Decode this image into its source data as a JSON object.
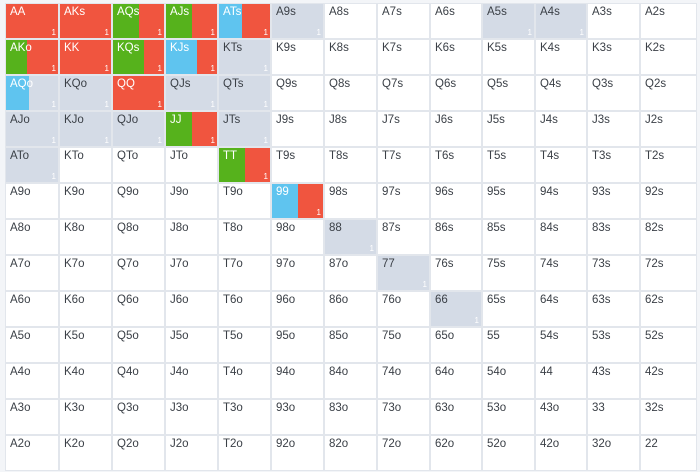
{
  "colors": {
    "red": "#f0553f",
    "green": "#56b21c",
    "blue": "#5fc4ef",
    "grey": "#d4dbe6",
    "white": "#ffffff"
  },
  "cells": [
    [
      "AA",
      "AKs",
      "AQs",
      "AJs",
      "ATs",
      "A9s",
      "A8s",
      "A7s",
      "A6s",
      "A5s",
      "A4s",
      "A3s",
      "A2s"
    ],
    [
      "AKo",
      "KK",
      "KQs",
      "KJs",
      "KTs",
      "K9s",
      "K8s",
      "K7s",
      "K6s",
      "K5s",
      "K4s",
      "K3s",
      "K2s"
    ],
    [
      "AQo",
      "KQo",
      "QQ",
      "QJs",
      "QTs",
      "Q9s",
      "Q8s",
      "Q7s",
      "Q6s",
      "Q5s",
      "Q4s",
      "Q3s",
      "Q2s"
    ],
    [
      "AJo",
      "KJo",
      "QJo",
      "JJ",
      "JTs",
      "J9s",
      "J8s",
      "J7s",
      "J6s",
      "J5s",
      "J4s",
      "J3s",
      "J2s"
    ],
    [
      "ATo",
      "KTo",
      "QTo",
      "JTo",
      "TT",
      "T9s",
      "T8s",
      "T7s",
      "T6s",
      "T5s",
      "T4s",
      "T3s",
      "T2s"
    ],
    [
      "A9o",
      "K9o",
      "Q9o",
      "J9o",
      "T9o",
      "99",
      "98s",
      "97s",
      "96s",
      "95s",
      "94s",
      "93s",
      "92s"
    ],
    [
      "A8o",
      "K8o",
      "Q8o",
      "J8o",
      "T8o",
      "98o",
      "88",
      "87s",
      "86s",
      "85s",
      "84s",
      "83s",
      "82s"
    ],
    [
      "A7o",
      "K7o",
      "Q7o",
      "J7o",
      "T7o",
      "97o",
      "87o",
      "77",
      "76s",
      "75s",
      "74s",
      "73s",
      "72s"
    ],
    [
      "A6o",
      "K6o",
      "Q6o",
      "J6o",
      "T6o",
      "96o",
      "86o",
      "76o",
      "66",
      "65s",
      "64s",
      "63s",
      "62s"
    ],
    [
      "A5o",
      "K5o",
      "Q5o",
      "J5o",
      "T5o",
      "95o",
      "85o",
      "75o",
      "65o",
      "55",
      "54s",
      "53s",
      "52s"
    ],
    [
      "A4o",
      "K4o",
      "Q4o",
      "J4o",
      "T4o",
      "94o",
      "84o",
      "74o",
      "64o",
      "54o",
      "44",
      "43s",
      "42s"
    ],
    [
      "A3o",
      "K3o",
      "Q3o",
      "J3o",
      "T3o",
      "93o",
      "83o",
      "73o",
      "63o",
      "53o",
      "43o",
      "33",
      "32s"
    ],
    [
      "A2o",
      "K2o",
      "Q2o",
      "J2o",
      "T2o",
      "92o",
      "82o",
      "72o",
      "62o",
      "52o",
      "42o",
      "32o",
      "22"
    ]
  ],
  "styles": {
    "0,0": {
      "segs": [
        [
          "red",
          1
        ]
      ],
      "count": "1"
    },
    "0,1": {
      "segs": [
        [
          "red",
          1
        ]
      ],
      "count": "1"
    },
    "0,2": {
      "segs": [
        [
          "green",
          0.5
        ],
        [
          "red",
          0.5
        ]
      ],
      "count": "1"
    },
    "0,3": {
      "segs": [
        [
          "green",
          0.5
        ],
        [
          "red",
          0.5
        ]
      ],
      "count": "1"
    },
    "0,4": {
      "segs": [
        [
          "blue",
          0.45
        ],
        [
          "red",
          0.55
        ]
      ],
      "count": "1"
    },
    "0,5": {
      "segs": [
        [
          "grey",
          1
        ]
      ],
      "count": "1"
    },
    "0,9": {
      "segs": [
        [
          "grey",
          1
        ]
      ],
      "count": "1"
    },
    "0,10": {
      "segs": [
        [
          "grey",
          1
        ]
      ],
      "count": "1"
    },
    "1,0": {
      "segs": [
        [
          "green",
          0.4
        ],
        [
          "red",
          0.6
        ]
      ],
      "count": "1"
    },
    "1,1": {
      "segs": [
        [
          "red",
          1
        ]
      ],
      "count": "1"
    },
    "1,2": {
      "segs": [
        [
          "green",
          0.6
        ],
        [
          "red",
          0.4
        ]
      ],
      "count": "1"
    },
    "1,3": {
      "segs": [
        [
          "blue",
          0.6
        ],
        [
          "red",
          0.4
        ]
      ],
      "count": "1"
    },
    "1,4": {
      "segs": [
        [
          "grey",
          1
        ]
      ],
      "count": "1"
    },
    "2,0": {
      "segs": [
        [
          "blue",
          0.45
        ],
        [
          "grey",
          0.55
        ]
      ],
      "count": "1"
    },
    "2,1": {
      "segs": [
        [
          "grey",
          1
        ]
      ],
      "count": "1"
    },
    "2,2": {
      "segs": [
        [
          "red",
          1
        ]
      ],
      "count": "1"
    },
    "2,3": {
      "segs": [
        [
          "grey",
          1
        ]
      ],
      "count": "1"
    },
    "2,4": {
      "segs": [
        [
          "grey",
          1
        ]
      ],
      "count": "1"
    },
    "3,0": {
      "segs": [
        [
          "grey",
          1
        ]
      ],
      "count": "1"
    },
    "3,1": {
      "segs": [
        [
          "grey",
          1
        ]
      ],
      "count": "1"
    },
    "3,2": {
      "segs": [
        [
          "grey",
          1
        ]
      ],
      "count": "1"
    },
    "3,3": {
      "segs": [
        [
          "green",
          0.5
        ],
        [
          "red",
          0.5
        ]
      ],
      "count": "1"
    },
    "3,4": {
      "segs": [
        [
          "grey",
          1
        ]
      ],
      "count": "1"
    },
    "4,0": {
      "segs": [
        [
          "grey",
          1
        ]
      ],
      "count": "1"
    },
    "4,4": {
      "segs": [
        [
          "green",
          0.5
        ],
        [
          "red",
          0.5
        ]
      ],
      "count": "1"
    },
    "5,5": {
      "segs": [
        [
          "blue",
          0.5
        ],
        [
          "red",
          0.5
        ]
      ],
      "count": "1"
    },
    "6,6": {
      "segs": [
        [
          "grey",
          1
        ]
      ],
      "count": "1"
    },
    "7,7": {
      "segs": [
        [
          "grey",
          1
        ]
      ],
      "count": "1"
    },
    "8,8": {
      "segs": [
        [
          "grey",
          1
        ]
      ],
      "count": "1"
    }
  }
}
